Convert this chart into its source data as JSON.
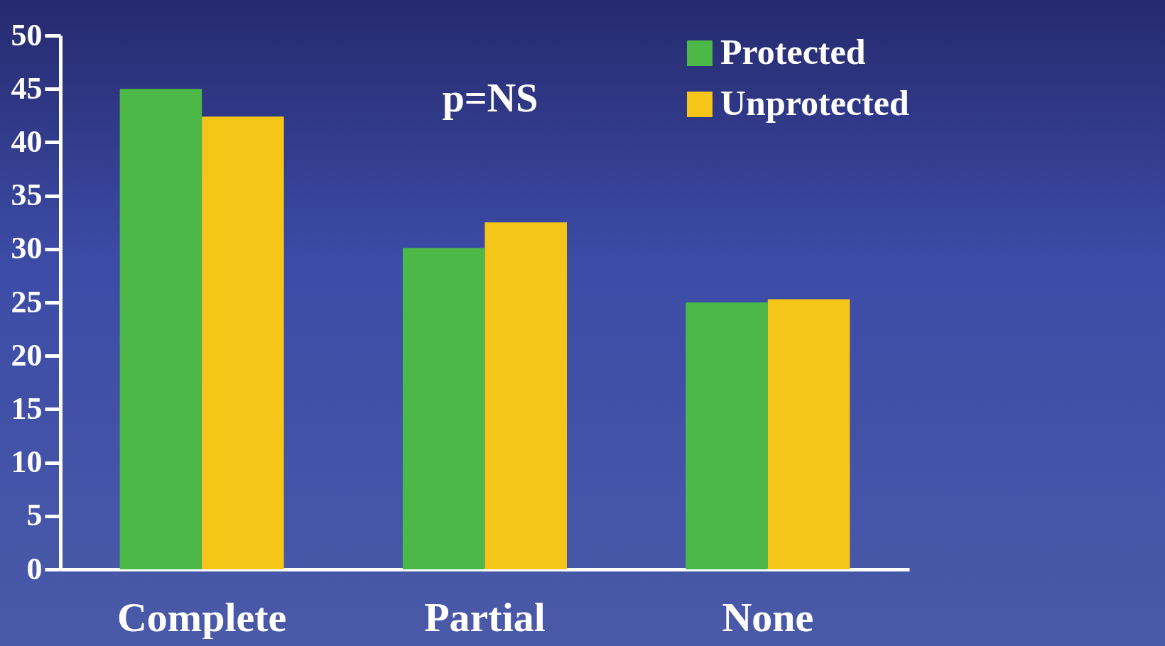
{
  "chart_data": {
    "type": "bar",
    "categories": [
      "Complete",
      "Partial",
      "None"
    ],
    "series": [
      {
        "name": "Protected",
        "color": "#4cb848",
        "values": [
          45.0,
          30.1,
          25.0
        ]
      },
      {
        "name": "Unprotected",
        "color": "#f5c518",
        "values": [
          42.4,
          32.5,
          25.3
        ]
      }
    ],
    "ylim": [
      0,
      50
    ],
    "yticks": [
      0,
      5,
      10,
      15,
      20,
      25,
      30,
      35,
      40,
      45,
      50
    ],
    "annotations": [
      "p=NS"
    ],
    "grid": false,
    "legend": "top right"
  }
}
